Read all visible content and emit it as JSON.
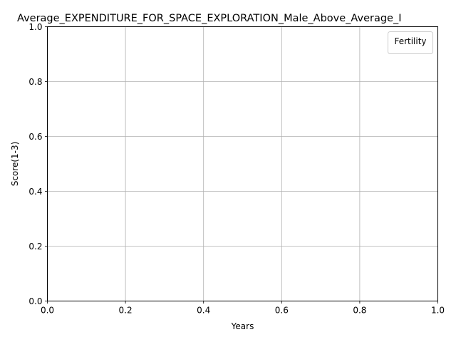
{
  "chart_data": {
    "type": "line",
    "title": "Average_EXPENDITURE_FOR_SPACE_EXPLORATION_Male_Above_Average_I",
    "xlabel": "Years",
    "ylabel": "Score(1-3)",
    "xlim": [
      0.0,
      1.0
    ],
    "ylim": [
      0.0,
      1.0
    ],
    "xticks": [
      "0.0",
      "0.2",
      "0.4",
      "0.6",
      "0.8",
      "1.0"
    ],
    "yticks": [
      "0.0",
      "0.2",
      "0.4",
      "0.6",
      "0.8",
      "1.0"
    ],
    "grid": true,
    "legend": {
      "title": "Fertility",
      "placement": "top-right",
      "entries": []
    },
    "series": []
  }
}
